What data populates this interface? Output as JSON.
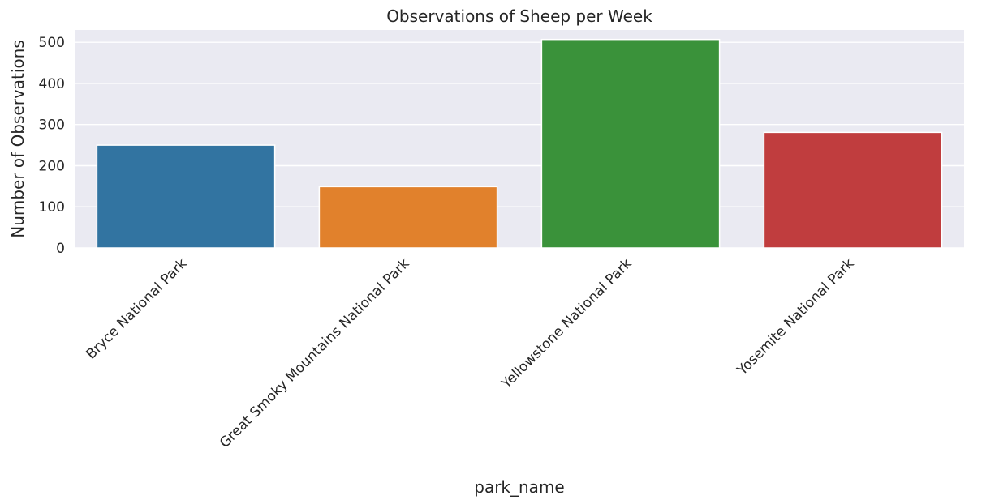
{
  "chart_data": {
    "type": "bar",
    "title": "Observations of Sheep per Week",
    "xlabel": "park_name",
    "ylabel": "Number of Observations",
    "categories": [
      "Bryce National Park",
      "Great Smoky Mountains National Park",
      "Yellowstone National Park",
      "Yosemite National Park"
    ],
    "values": [
      250,
      149,
      507,
      281
    ],
    "colors": [
      "#3274a1",
      "#e1812c",
      "#3a923a",
      "#c03d3e"
    ],
    "ylim": [
      0,
      530
    ],
    "yticks": [
      0,
      100,
      200,
      300,
      400,
      500
    ],
    "ytick_labels": [
      "0",
      "100",
      "200",
      "300",
      "400",
      "500"
    ],
    "grid": true,
    "background": "#eaeaf2",
    "gridline_color": "#ffffff"
  }
}
